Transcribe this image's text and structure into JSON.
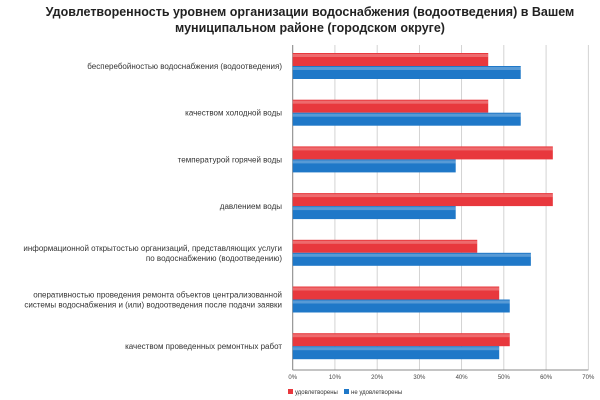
{
  "chart_data": {
    "type": "bar",
    "orientation": "horizontal",
    "title": "Удовлетворенность уровнем организации водоснабжения (водоотведения) в Вашем муниципальном районе (городском округе)",
    "categories": [
      [
        "бесперебойностью водоснабжения (водоотведения)"
      ],
      [
        "качеством холодной воды"
      ],
      [
        "температурой горячей воды"
      ],
      [
        "давлением воды"
      ],
      [
        "информационной открытостью организаций, представляющих услуги",
        "по водоснабжению (водоотведению)"
      ],
      [
        "оперативностью проведения  ремонта объектов централизованной",
        "системы водоснабжения и (или) водоотведения  после подачи заявки"
      ],
      [
        "качеством проведенных ремонтных работ"
      ]
    ],
    "series": [
      {
        "name": "удовлетворены",
        "color": "#e8383d",
        "values": [
          46.3,
          46.3,
          61.6,
          61.6,
          43.7,
          48.9,
          51.4
        ]
      },
      {
        "name": "не удовлетворены",
        "color": "#1f78c8",
        "values": [
          54.0,
          54.0,
          38.6,
          38.6,
          56.4,
          51.4,
          48.9
        ]
      }
    ],
    "xlim": [
      0,
      70
    ],
    "xticks": [
      "0%",
      "10%",
      "20%",
      "30%",
      "40%",
      "50%",
      "60%",
      "70%"
    ],
    "grid": true,
    "legend": "bottom-left"
  }
}
